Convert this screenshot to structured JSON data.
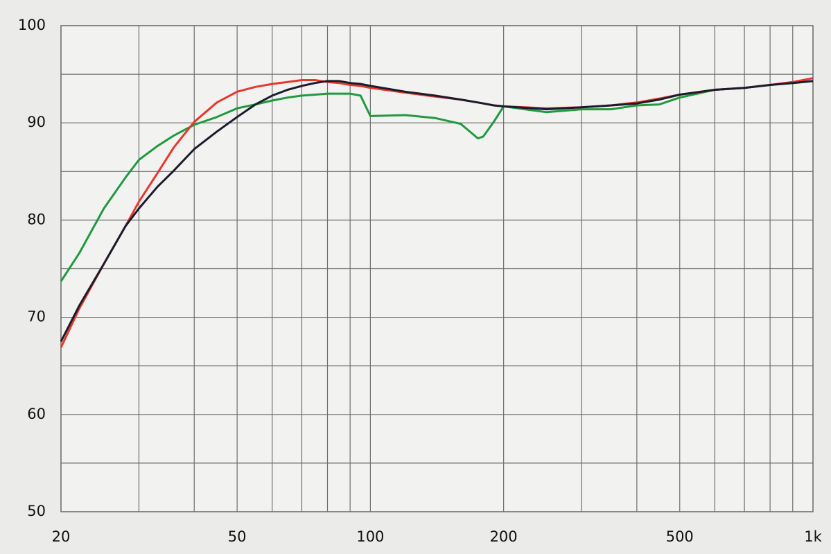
{
  "chart_data": {
    "type": "line",
    "xscale": "log",
    "grid": true,
    "xlim": [
      20,
      1000
    ],
    "xticks": [
      20,
      50,
      100,
      200,
      500,
      {
        "value": 1000,
        "label": "1k"
      }
    ],
    "x_minor_ticks": [
      30,
      40,
      60,
      70,
      80,
      90,
      300,
      400,
      600,
      700,
      800,
      900
    ],
    "ylim": [
      50,
      100
    ],
    "yticks": [
      50,
      60,
      70,
      80,
      90,
      100
    ],
    "y_minor_ticks": [
      55,
      65,
      75,
      85,
      95
    ],
    "x": [
      20,
      22,
      25,
      28,
      30,
      33,
      36,
      40,
      45,
      50,
      55,
      60,
      65,
      70,
      75,
      80,
      85,
      90,
      95,
      100,
      120,
      140,
      160,
      175,
      180,
      190,
      200,
      250,
      300,
      350,
      400,
      450,
      500,
      600,
      700,
      800,
      900,
      1000
    ],
    "series": [
      {
        "color": "#1f9a3e",
        "values": [
          73.7,
          76.6,
          81.2,
          84.4,
          86.2,
          87.6,
          88.7,
          89.8,
          90.6,
          91.5,
          91.9,
          92.3,
          92.6,
          92.8,
          92.9,
          93.0,
          93.0,
          93.0,
          92.8,
          90.7,
          90.8,
          90.5,
          89.9,
          88.4,
          88.6,
          90.1,
          91.7,
          91.1,
          91.4,
          91.4,
          91.8,
          91.9,
          92.6,
          93.4,
          93.6,
          93.9,
          94.1,
          94.3
        ]
      },
      {
        "color": "#e8372b",
        "values": [
          66.9,
          70.9,
          75.5,
          79.4,
          81.9,
          84.8,
          87.5,
          90.1,
          92.1,
          93.2,
          93.7,
          94.0,
          94.2,
          94.4,
          94.4,
          94.2,
          94.1,
          93.9,
          93.8,
          93.6,
          93.1,
          92.7,
          92.4,
          92.1,
          92.0,
          91.8,
          91.7,
          91.5,
          91.6,
          91.8,
          92.1,
          92.5,
          92.9,
          93.4,
          93.6,
          93.9,
          94.2,
          94.6
        ]
      },
      {
        "color": "#1b1b2c",
        "values": [
          67.5,
          71.2,
          75.5,
          79.4,
          81.2,
          83.4,
          85.1,
          87.3,
          89.1,
          90.6,
          91.9,
          92.8,
          93.4,
          93.8,
          94.1,
          94.3,
          94.3,
          94.1,
          94.0,
          93.8,
          93.2,
          92.8,
          92.4,
          92.1,
          92.0,
          91.8,
          91.7,
          91.4,
          91.6,
          91.8,
          92.0,
          92.4,
          92.9,
          93.4,
          93.6,
          93.9,
          94.1,
          94.3
        ]
      }
    ]
  }
}
